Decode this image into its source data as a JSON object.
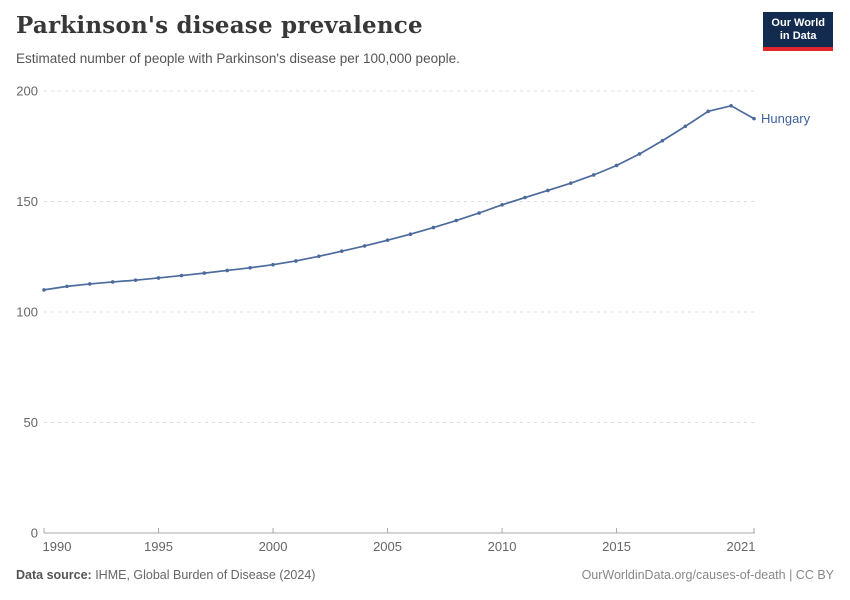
{
  "header": {
    "logo_line1": "Our World",
    "logo_line2": "in Data"
  },
  "chart_data": {
    "type": "line",
    "title": "Parkinson's disease prevalence",
    "subtitle": "Estimated number of people with Parkinson's disease per 100,000 people.",
    "x": [
      1990,
      1991,
      1992,
      1993,
      1994,
      1995,
      1996,
      1997,
      1998,
      1999,
      2000,
      2001,
      2002,
      2003,
      2004,
      2005,
      2006,
      2007,
      2008,
      2009,
      2010,
      2011,
      2012,
      2013,
      2014,
      2015,
      2016,
      2017,
      2018,
      2019,
      2020,
      2021
    ],
    "series": [
      {
        "name": "Hungary",
        "values": [
          110.0,
          111.6,
          112.7,
          113.6,
          114.4,
          115.4,
          116.5,
          117.6,
          118.8,
          120.0,
          121.4,
          123.1,
          125.2,
          127.5,
          129.9,
          132.5,
          135.2,
          138.2,
          141.4,
          144.8,
          148.5,
          151.8,
          155.0,
          158.3,
          162.0,
          166.3,
          171.5,
          177.5,
          184.0,
          190.8,
          193.3,
          187.5
        ]
      }
    ],
    "x_ticks": [
      1990,
      1995,
      2000,
      2005,
      2010,
      2015,
      2021
    ],
    "y_ticks": [
      0,
      50,
      100,
      150,
      200
    ],
    "xlim": [
      1990,
      2021
    ],
    "ylim": [
      0,
      200
    ],
    "xlabel": "",
    "ylabel": "",
    "grid": "horizontal-dashed",
    "legend_position": "end-of-line-label",
    "markers": true
  },
  "colors": {
    "line": "#4C6A9C",
    "series_label": "#3D619E",
    "gridline": "#DDDDDD",
    "axis": "#A8A8A8",
    "tick_text": "#666666",
    "logo_bg": "#122B4E",
    "logo_red": "#E2262B"
  },
  "footer": {
    "source_label": "Data source:",
    "source_text": " IHME, Global Burden of Disease (2024)",
    "license_text": "OurWorldinData.org/causes-of-death | CC BY"
  }
}
